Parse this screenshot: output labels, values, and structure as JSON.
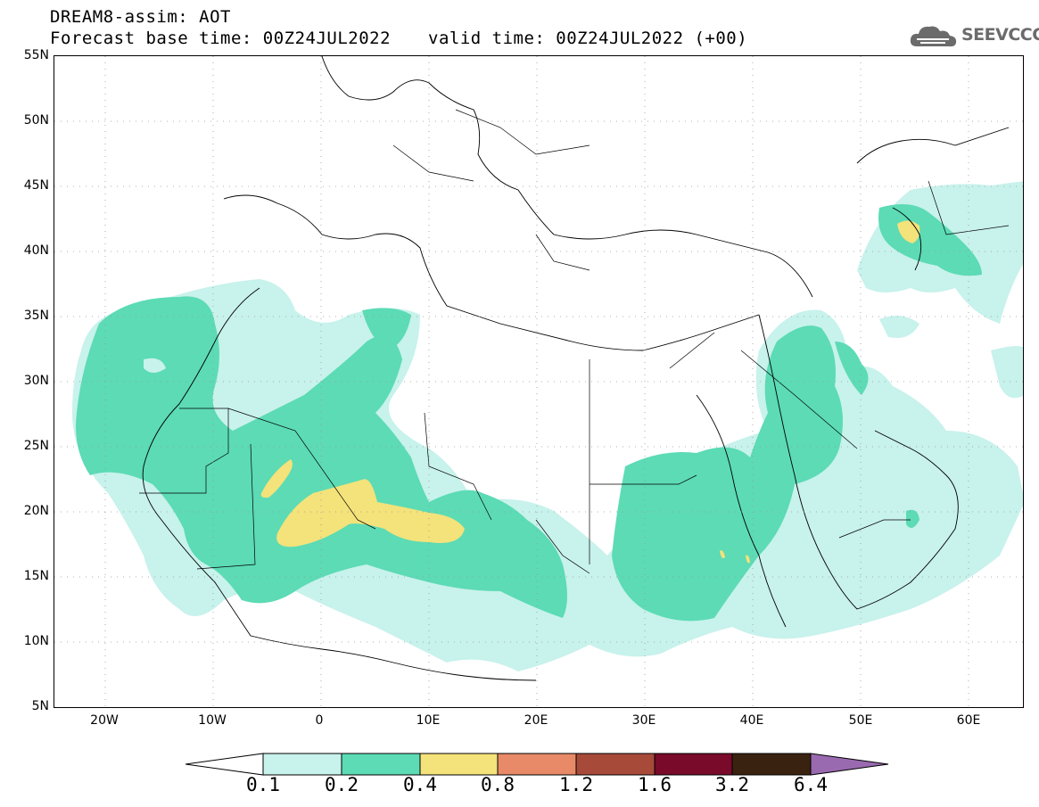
{
  "title_line1": "DREAM8-assim: AOT",
  "title_line2": "Forecast base time: 00Z24JUL2022",
  "title_valid": "valid time: 00Z24JUL2022 (+00)",
  "logo_text": "SEEVCCC",
  "logo_icon": "cloud-gear-icon",
  "lat_labels": [
    "55N",
    "50N",
    "45N",
    "40N",
    "35N",
    "30N",
    "25N",
    "20N",
    "15N",
    "10N",
    "5N"
  ],
  "lon_labels": [
    "20W",
    "10W",
    "0",
    "10E",
    "20E",
    "30E",
    "40E",
    "50E",
    "60E"
  ],
  "colorbar": {
    "labels": [
      "0.1",
      "0.2",
      "0.4",
      "0.8",
      "1.2",
      "1.6",
      "3.2",
      "6.4"
    ],
    "colors": [
      "#ffffff",
      "#c8f2ec",
      "#5cdbb5",
      "#f4e27a",
      "#e88a68",
      "#a84a3a",
      "#7a0a2a",
      "#3a2210",
      "#9a6ab0"
    ]
  },
  "aot_colors": {
    "c01": "#c8f2ec",
    "c02": "#5cdbb5",
    "c04": "#f4e27a"
  }
}
